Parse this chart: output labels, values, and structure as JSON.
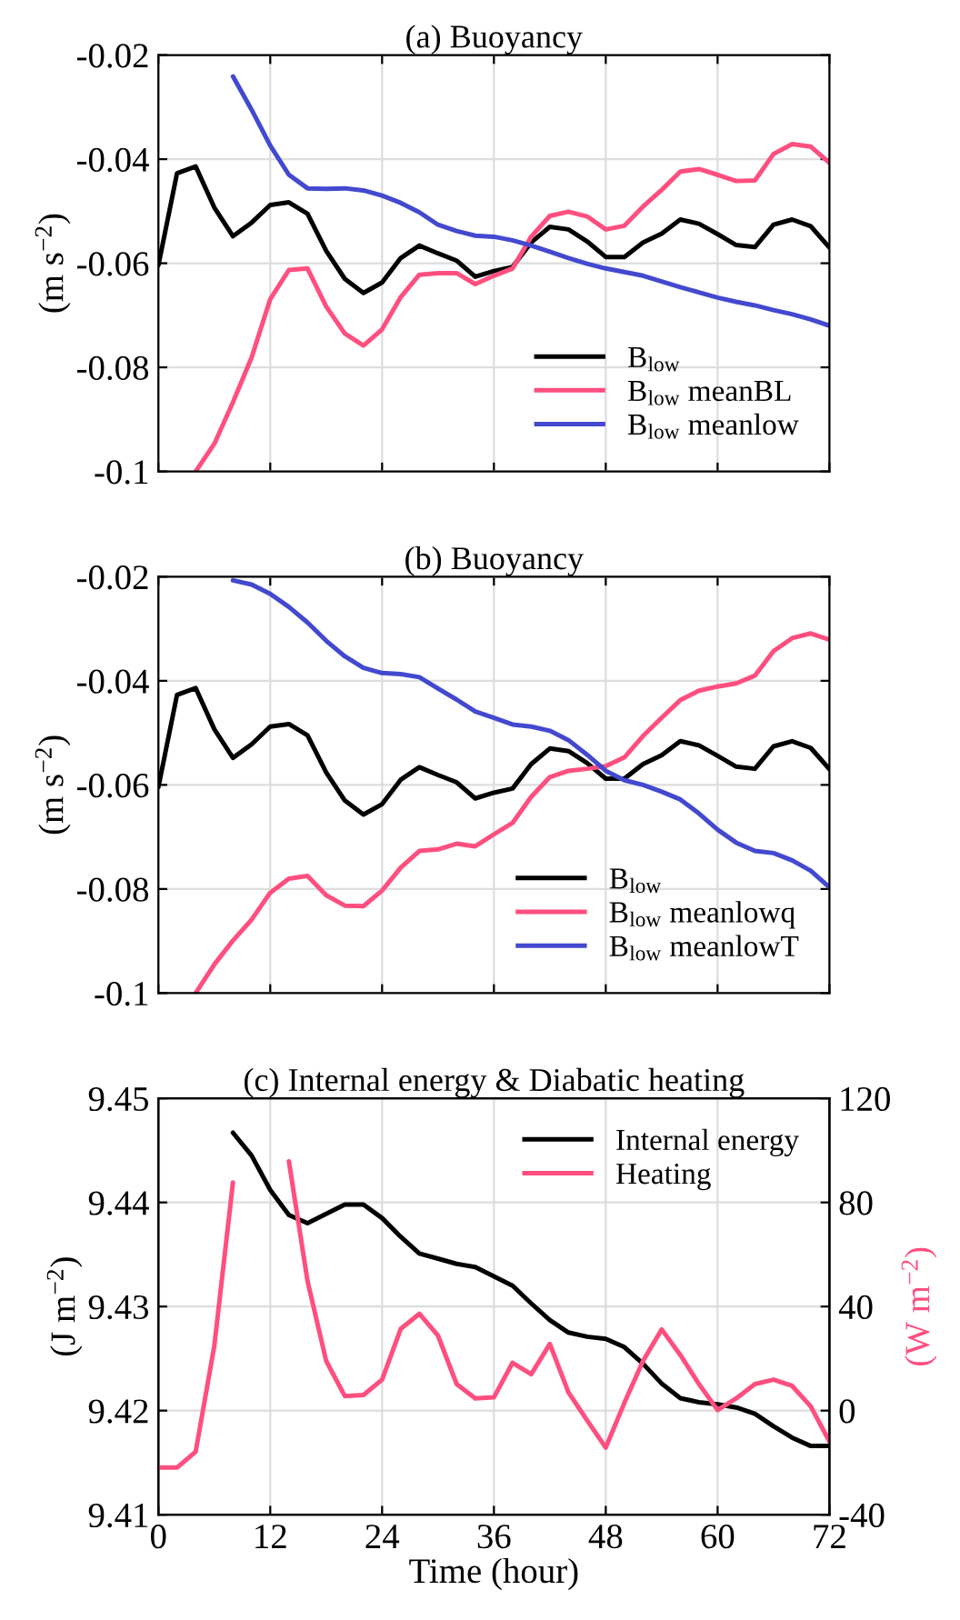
{
  "chart_data": [
    {
      "type": "line",
      "title": "(a) Buoyancy",
      "ylabel": "(m s$^{−2}$)",
      "x": [
        0,
        2,
        4,
        6,
        8,
        10,
        12,
        14,
        16,
        18,
        20,
        22,
        24,
        26,
        28,
        30,
        32,
        34,
        36,
        38,
        40,
        42,
        44,
        46,
        48,
        50,
        52,
        54,
        56,
        58,
        60,
        62,
        64,
        66,
        68,
        70,
        72
      ],
      "xlim": [
        0,
        72
      ],
      "xticks": [
        0,
        12,
        24,
        36,
        48,
        60,
        72
      ],
      "ylim": [
        -0.1,
        -0.02
      ],
      "yticks": [
        -0.1,
        -0.08,
        -0.06,
        -0.04,
        -0.02
      ],
      "grid": true,
      "legend": "bottom right",
      "tick_labels": "y",
      "series": [
        {
          "name": "B$_{low}$",
          "color": "#000000",
          "values": [
            -0.0604,
            -0.0427,
            -0.0414,
            -0.0493,
            -0.0548,
            -0.0522,
            -0.0488,
            -0.0483,
            -0.0505,
            -0.0576,
            -0.063,
            -0.0657,
            -0.0637,
            -0.059,
            -0.0566,
            -0.0581,
            -0.0595,
            -0.0626,
            -0.0615,
            -0.0607,
            -0.056,
            -0.053,
            -0.0535,
            -0.0558,
            -0.0588,
            -0.0588,
            -0.056,
            -0.0543,
            -0.0516,
            -0.0524,
            -0.0544,
            -0.0565,
            -0.0569,
            -0.0526,
            -0.0516,
            -0.0529,
            -0.057
          ]
        },
        {
          "name": "B$_{low}$ meanBL",
          "color": "#ff4f7f",
          "values": [
            null,
            null,
            -0.1,
            -0.0947,
            -0.0867,
            -0.0781,
            -0.0669,
            -0.0613,
            -0.061,
            -0.0683,
            -0.0735,
            -0.0758,
            -0.0727,
            -0.0665,
            -0.0622,
            -0.0619,
            -0.0619,
            -0.064,
            -0.0624,
            -0.061,
            -0.0549,
            -0.0509,
            -0.0501,
            -0.051,
            -0.0535,
            -0.0528,
            -0.0491,
            -0.0459,
            -0.0424,
            -0.0419,
            -0.043,
            -0.0442,
            -0.0441,
            -0.039,
            -0.0371,
            -0.0376,
            -0.0407
          ]
        },
        {
          "name": "B$_{low}$ meanlow",
          "color": "#4349cf",
          "values": [
            null,
            null,
            null,
            null,
            -0.0241,
            -0.0305,
            -0.0374,
            -0.043,
            -0.0456,
            -0.0457,
            -0.0456,
            -0.046,
            -0.047,
            -0.0484,
            -0.0502,
            -0.0526,
            -0.0538,
            -0.0547,
            -0.0549,
            -0.0556,
            -0.0566,
            -0.0578,
            -0.059,
            -0.0601,
            -0.061,
            -0.0617,
            -0.0624,
            -0.0635,
            -0.0646,
            -0.0656,
            -0.0666,
            -0.0674,
            -0.0681,
            -0.069,
            -0.0698,
            -0.0708,
            -0.072
          ]
        }
      ]
    },
    {
      "type": "line",
      "title": "(b) Buoyancy",
      "ylabel": "(m s$^{−2}$)",
      "x": [
        0,
        2,
        4,
        6,
        8,
        10,
        12,
        14,
        16,
        18,
        20,
        22,
        24,
        26,
        28,
        30,
        32,
        34,
        36,
        38,
        40,
        42,
        44,
        46,
        48,
        50,
        52,
        54,
        56,
        58,
        60,
        62,
        64,
        66,
        68,
        70,
        72
      ],
      "xlim": [
        0,
        72
      ],
      "xticks": [
        0,
        12,
        24,
        36,
        48,
        60,
        72
      ],
      "ylim": [
        -0.1,
        -0.02
      ],
      "yticks": [
        -0.1,
        -0.08,
        -0.06,
        -0.04,
        -0.02
      ],
      "grid": true,
      "legend": "bottom right",
      "tick_labels": "y",
      "series": [
        {
          "name": "B$_{low}$",
          "color": "#000000",
          "values": [
            -0.0604,
            -0.0427,
            -0.0414,
            -0.0493,
            -0.0548,
            -0.0522,
            -0.0488,
            -0.0483,
            -0.0505,
            -0.0576,
            -0.063,
            -0.0657,
            -0.0637,
            -0.059,
            -0.0566,
            -0.0581,
            -0.0595,
            -0.0626,
            -0.0615,
            -0.0607,
            -0.056,
            -0.053,
            -0.0535,
            -0.0558,
            -0.0588,
            -0.0588,
            -0.056,
            -0.0543,
            -0.0516,
            -0.0524,
            -0.0544,
            -0.0565,
            -0.0569,
            -0.0526,
            -0.0516,
            -0.0529,
            -0.057
          ]
        },
        {
          "name": "B$_{low}$ meanlowq",
          "color": "#ff4f7f",
          "values": [
            null,
            null,
            -0.1,
            -0.0945,
            -0.0899,
            -0.0859,
            -0.0807,
            -0.078,
            -0.0775,
            -0.0812,
            -0.0832,
            -0.0833,
            -0.0803,
            -0.0759,
            -0.0727,
            -0.0724,
            -0.0713,
            -0.0718,
            -0.0695,
            -0.0673,
            -0.0623,
            -0.0585,
            -0.0573,
            -0.0569,
            -0.0564,
            -0.0547,
            -0.0506,
            -0.0471,
            -0.0437,
            -0.0419,
            -0.0411,
            -0.0405,
            -0.039,
            -0.0343,
            -0.0318,
            -0.0309,
            -0.0321
          ]
        },
        {
          "name": "B$_{low}$ meanlowT",
          "color": "#4349cf",
          "values": [
            null,
            null,
            null,
            null,
            -0.0207,
            -0.0215,
            -0.0233,
            -0.0258,
            -0.0288,
            -0.0323,
            -0.0353,
            -0.0375,
            -0.0385,
            -0.0387,
            -0.0393,
            -0.0415,
            -0.0436,
            -0.0459,
            -0.0471,
            -0.0484,
            -0.0488,
            -0.0496,
            -0.0514,
            -0.0542,
            -0.0573,
            -0.0591,
            -0.06,
            -0.0613,
            -0.0628,
            -0.0655,
            -0.0686,
            -0.0711,
            -0.0727,
            -0.0731,
            -0.0745,
            -0.0765,
            -0.0797
          ]
        }
      ]
    },
    {
      "type": "line",
      "title": "(c) Internal energy & Diabatic heating",
      "xlabel": "Time (hour)",
      "ylabel": "(J m$^{−2}$)",
      "y2label": "(W m$^{−2}$)",
      "x": [
        0,
        2,
        4,
        6,
        8,
        10,
        12,
        14,
        16,
        18,
        20,
        22,
        24,
        26,
        28,
        30,
        32,
        34,
        36,
        38,
        40,
        42,
        44,
        46,
        48,
        50,
        52,
        54,
        56,
        58,
        60,
        62,
        64,
        66,
        68,
        70,
        72
      ],
      "xlim": [
        0,
        72
      ],
      "xticks": [
        0,
        12,
        24,
        36,
        48,
        60,
        72
      ],
      "ylim": [
        9.41,
        9.45
      ],
      "yticks": [
        9.41,
        9.42,
        9.43,
        9.44,
        9.45
      ],
      "y2lim": [
        -40,
        120
      ],
      "y2ticks": [
        -40,
        0,
        40,
        80,
        120
      ],
      "grid": true,
      "legend": "top right",
      "series": [
        {
          "name": "Internal energy",
          "color": "#000000",
          "values": [
            null,
            null,
            null,
            null,
            9.4467,
            9.4445,
            9.4412,
            9.4388,
            9.438,
            9.4389,
            9.4398,
            9.4398,
            9.4385,
            9.4367,
            9.4351,
            9.4346,
            9.4341,
            9.4338,
            9.4329,
            9.432,
            9.4303,
            9.4287,
            9.4275,
            9.4271,
            9.4269,
            9.4261,
            9.4245,
            9.4226,
            9.4212,
            9.4208,
            9.4206,
            9.4203,
            9.4197,
            9.4185,
            9.4174,
            9.4166,
            9.4166
          ]
        },
        {
          "name": "Heating",
          "color": "#ff4f7f",
          "axis": "y2",
          "values": [
            -21.9,
            -21.9,
            -15.8,
            24.9,
            87.7,
            null,
            null,
            95.8,
            49.8,
            19.1,
            5.6,
            6.0,
            11.9,
            31.4,
            37.2,
            28.8,
            10.2,
            4.7,
            5.1,
            18.4,
            14.0,
            25.6,
            7.0,
            -3.7,
            -14.2,
            3.0,
            19.1,
            31.2,
            21.4,
            10.2,
            0.2,
            4.7,
            10.2,
            11.9,
            9.5,
            1.6,
            -11.9
          ]
        }
      ]
    }
  ]
}
